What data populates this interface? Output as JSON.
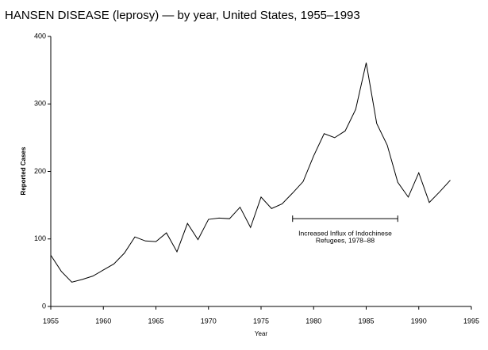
{
  "chart_data": {
    "type": "line",
    "title": "HANSEN DISEASE (leprosy) — by year, United States, 1955–1993",
    "x_label": "Year",
    "y_label": "Reported Cases",
    "x": [
      1955,
      1956,
      1957,
      1958,
      1959,
      1960,
      1961,
      1962,
      1963,
      1964,
      1965,
      1966,
      1967,
      1968,
      1969,
      1970,
      1971,
      1972,
      1973,
      1974,
      1975,
      1976,
      1977,
      1978,
      1979,
      1980,
      1981,
      1982,
      1983,
      1984,
      1985,
      1986,
      1987,
      1988,
      1989,
      1990,
      1991,
      1992,
      1993
    ],
    "values": [
      76,
      52,
      36,
      40,
      45,
      54,
      63,
      79,
      103,
      97,
      96,
      109,
      81,
      123,
      99,
      129,
      131,
      130,
      147,
      117,
      162,
      145,
      152,
      168,
      185,
      223,
      256,
      250,
      260,
      292,
      361,
      271,
      239,
      184,
      162,
      198,
      154,
      170,
      187
    ],
    "color": "#000000",
    "xlim": [
      1955,
      1995
    ],
    "xticks": [
      1955,
      1960,
      1965,
      1970,
      1975,
      1980,
      1985,
      1990,
      1995
    ],
    "ylim": [
      0,
      400
    ],
    "yticks": [
      0,
      100,
      200,
      300,
      400
    ],
    "annotation": {
      "lines": [
        "Increased Influx of Indochinese",
        "Refugees, 1978–88"
      ],
      "span": [
        1978,
        1988
      ],
      "y": 130
    }
  }
}
